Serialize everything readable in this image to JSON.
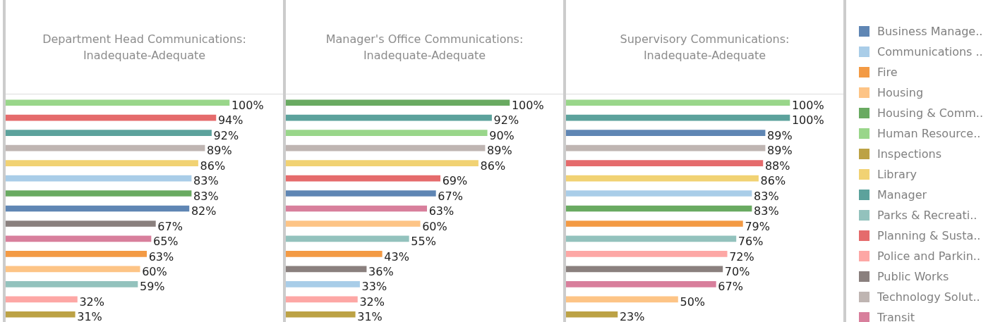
{
  "chart_data": [
    {
      "type": "bar",
      "orientation": "horizontal",
      "stacked": true,
      "title": "Department Head Communications:\nInadequate-Adequate",
      "categories": [
        null,
        null,
        null,
        null,
        null,
        null,
        null,
        null,
        null,
        null,
        null,
        null,
        null,
        null,
        null
      ],
      "series": [
        {
          "color": "#5f86b4",
          "values": [
            null,
            null,
            null,
            null,
            null,
            null,
            null,
            82,
            null,
            null,
            null,
            null,
            null,
            null,
            null
          ],
          "value_labels": [
            null,
            null,
            null,
            null,
            null,
            null,
            null,
            "82%",
            null,
            null,
            null,
            null,
            null,
            null,
            null
          ]
        },
        {
          "color": "#a9cde8",
          "values": [
            null,
            null,
            null,
            null,
            null,
            83,
            null,
            null,
            null,
            null,
            null,
            null,
            null,
            null,
            null
          ],
          "value_labels": [
            null,
            null,
            null,
            null,
            null,
            "83%",
            null,
            null,
            null,
            null,
            null,
            null,
            null,
            null,
            null
          ]
        },
        {
          "color": "#f39a44",
          "values": [
            null,
            null,
            null,
            null,
            null,
            null,
            null,
            null,
            null,
            null,
            63,
            null,
            null,
            null,
            null
          ],
          "value_labels": [
            null,
            null,
            null,
            null,
            null,
            null,
            null,
            null,
            null,
            null,
            "63%",
            null,
            null,
            null,
            null
          ]
        },
        {
          "color": "#fdc486",
          "values": [
            null,
            null,
            null,
            null,
            null,
            null,
            null,
            null,
            null,
            null,
            null,
            60,
            null,
            null,
            null
          ],
          "value_labels": [
            null,
            null,
            null,
            null,
            null,
            null,
            null,
            null,
            null,
            null,
            null,
            "60%",
            null,
            null,
            null
          ]
        },
        {
          "color": "#69aa61",
          "values": [
            null,
            null,
            null,
            null,
            null,
            null,
            83,
            null,
            null,
            null,
            null,
            null,
            null,
            null,
            null
          ],
          "value_labels": [
            null,
            null,
            null,
            null,
            null,
            null,
            "83%",
            null,
            null,
            null,
            null,
            null,
            null,
            null,
            null
          ]
        },
        {
          "color": "#99d68a",
          "values": [
            100,
            null,
            null,
            null,
            null,
            null,
            null,
            null,
            null,
            null,
            null,
            null,
            null,
            null,
            null
          ],
          "value_labels": [
            "100%",
            null,
            null,
            null,
            null,
            null,
            null,
            null,
            null,
            null,
            null,
            null,
            null,
            null,
            null
          ]
        },
        {
          "color": "#bca245",
          "values": [
            null,
            null,
            null,
            null,
            null,
            null,
            null,
            null,
            null,
            null,
            null,
            null,
            null,
            null,
            31
          ],
          "value_labels": [
            null,
            null,
            null,
            null,
            null,
            null,
            null,
            null,
            null,
            null,
            null,
            null,
            null,
            null,
            "31%"
          ]
        },
        {
          "color": "#f1d273",
          "values": [
            null,
            null,
            null,
            null,
            86,
            null,
            null,
            null,
            null,
            null,
            null,
            null,
            null,
            null,
            null
          ],
          "value_labels": [
            null,
            null,
            null,
            null,
            "86%",
            null,
            null,
            null,
            null,
            null,
            null,
            null,
            null,
            null,
            null
          ]
        },
        {
          "color": "#5ca29c",
          "values": [
            null,
            null,
            92,
            null,
            null,
            null,
            null,
            null,
            null,
            null,
            null,
            null,
            null,
            null,
            null
          ],
          "value_labels": [
            null,
            null,
            "92%",
            null,
            null,
            null,
            null,
            null,
            null,
            null,
            null,
            null,
            null,
            null,
            null
          ]
        },
        {
          "color": "#93c2bd",
          "values": [
            null,
            null,
            null,
            null,
            null,
            null,
            null,
            null,
            null,
            null,
            null,
            null,
            59,
            null,
            null
          ],
          "value_labels": [
            null,
            null,
            null,
            null,
            null,
            null,
            null,
            null,
            null,
            null,
            null,
            null,
            "59%",
            null,
            null
          ]
        },
        {
          "color": "#e56b6c",
          "values": [
            null,
            94,
            null,
            null,
            null,
            null,
            null,
            null,
            null,
            null,
            null,
            null,
            null,
            null,
            null
          ],
          "value_labels": [
            null,
            "94%",
            null,
            null,
            null,
            null,
            null,
            null,
            null,
            null,
            null,
            null,
            null,
            null,
            null
          ]
        },
        {
          "color": "#fda7a5",
          "values": [
            null,
            null,
            null,
            null,
            null,
            null,
            null,
            null,
            null,
            null,
            null,
            null,
            null,
            32,
            null
          ],
          "value_labels": [
            null,
            null,
            null,
            null,
            null,
            null,
            null,
            null,
            null,
            null,
            null,
            null,
            null,
            "32%",
            null
          ]
        },
        {
          "color": "#8a807e",
          "values": [
            null,
            null,
            null,
            null,
            null,
            null,
            null,
            null,
            67,
            null,
            null,
            null,
            null,
            null,
            null
          ],
          "value_labels": [
            null,
            null,
            null,
            null,
            null,
            null,
            null,
            null,
            "67%",
            null,
            null,
            null,
            null,
            null,
            null
          ]
        },
        {
          "color": "#bfb5b2",
          "values": [
            null,
            null,
            null,
            89,
            null,
            null,
            null,
            null,
            null,
            null,
            null,
            null,
            null,
            null,
            null
          ],
          "value_labels": [
            null,
            null,
            null,
            "89%",
            null,
            null,
            null,
            null,
            null,
            null,
            null,
            null,
            null,
            null,
            null
          ]
        },
        {
          "color": "#d87f9c",
          "values": [
            null,
            null,
            null,
            null,
            null,
            null,
            null,
            null,
            null,
            65,
            null,
            null,
            null,
            null,
            null
          ],
          "value_labels": [
            null,
            null,
            null,
            null,
            null,
            null,
            null,
            null,
            null,
            "65%",
            null,
            null,
            null,
            null,
            null
          ]
        }
      ]
    },
    {
      "type": "bar",
      "orientation": "horizontal",
      "stacked": true,
      "title": "Manager's Office Communications:\nInadequate-Adequate",
      "categories": [
        null,
        null,
        null,
        null,
        null,
        null,
        null,
        null,
        null,
        null,
        null,
        null,
        null,
        null,
        null
      ],
      "series": [
        {
          "color": "#5f86b4",
          "values": [
            null,
            null,
            null,
            null,
            null,
            null,
            67,
            null,
            null,
            null,
            null,
            null,
            null,
            null,
            null
          ],
          "value_labels": [
            null,
            null,
            null,
            null,
            null,
            null,
            "67%",
            null,
            null,
            null,
            null,
            null,
            null,
            null,
            null
          ]
        },
        {
          "color": "#a9cde8",
          "values": [
            null,
            null,
            null,
            null,
            null,
            null,
            null,
            null,
            null,
            null,
            null,
            null,
            33,
            null,
            null
          ],
          "value_labels": [
            null,
            null,
            null,
            null,
            null,
            null,
            null,
            null,
            null,
            null,
            null,
            null,
            "33%",
            null,
            null
          ]
        },
        {
          "color": "#f39a44",
          "values": [
            null,
            null,
            null,
            null,
            null,
            null,
            null,
            null,
            null,
            null,
            43,
            null,
            null,
            null,
            null
          ],
          "value_labels": [
            null,
            null,
            null,
            null,
            null,
            null,
            null,
            null,
            null,
            null,
            "43%",
            null,
            null,
            null,
            null
          ]
        },
        {
          "color": "#fdc486",
          "values": [
            null,
            null,
            null,
            null,
            null,
            null,
            null,
            null,
            60,
            null,
            null,
            null,
            null,
            null,
            null
          ],
          "value_labels": [
            null,
            null,
            null,
            null,
            null,
            null,
            null,
            null,
            "60%",
            null,
            null,
            null,
            null,
            null,
            null
          ]
        },
        {
          "color": "#69aa61",
          "values": [
            100,
            null,
            null,
            null,
            null,
            null,
            null,
            null,
            null,
            null,
            null,
            null,
            null,
            null,
            null
          ],
          "value_labels": [
            "100%",
            null,
            null,
            null,
            null,
            null,
            null,
            null,
            null,
            null,
            null,
            null,
            null,
            null,
            null
          ]
        },
        {
          "color": "#99d68a",
          "values": [
            null,
            null,
            90,
            null,
            null,
            null,
            null,
            null,
            null,
            null,
            null,
            null,
            null,
            null,
            null
          ],
          "value_labels": [
            null,
            null,
            "90%",
            null,
            null,
            null,
            null,
            null,
            null,
            null,
            null,
            null,
            null,
            null,
            null
          ]
        },
        {
          "color": "#bca245",
          "values": [
            null,
            null,
            null,
            null,
            null,
            null,
            null,
            null,
            null,
            null,
            null,
            null,
            null,
            null,
            31
          ],
          "value_labels": [
            null,
            null,
            null,
            null,
            null,
            null,
            null,
            null,
            null,
            null,
            null,
            null,
            null,
            null,
            "31%"
          ]
        },
        {
          "color": "#f1d273",
          "values": [
            null,
            null,
            null,
            null,
            86,
            null,
            null,
            null,
            null,
            null,
            null,
            null,
            null,
            null,
            null
          ],
          "value_labels": [
            null,
            null,
            null,
            null,
            "86%",
            null,
            null,
            null,
            null,
            null,
            null,
            null,
            null,
            null,
            null
          ]
        },
        {
          "color": "#5ca29c",
          "values": [
            null,
            92,
            null,
            null,
            null,
            null,
            null,
            null,
            null,
            null,
            null,
            null,
            null,
            null,
            null
          ],
          "value_labels": [
            null,
            "92%",
            null,
            null,
            null,
            null,
            null,
            null,
            null,
            null,
            null,
            null,
            null,
            null,
            null
          ]
        },
        {
          "color": "#93c2bd",
          "values": [
            null,
            null,
            null,
            null,
            null,
            null,
            null,
            null,
            null,
            55,
            null,
            null,
            null,
            null,
            null
          ],
          "value_labels": [
            null,
            null,
            null,
            null,
            null,
            null,
            null,
            null,
            null,
            "55%",
            null,
            null,
            null,
            null,
            null
          ]
        },
        {
          "color": "#e56b6c",
          "values": [
            null,
            null,
            null,
            null,
            null,
            69,
            null,
            null,
            null,
            null,
            null,
            null,
            null,
            null,
            null
          ],
          "value_labels": [
            null,
            null,
            null,
            null,
            null,
            "69%",
            null,
            null,
            null,
            null,
            null,
            null,
            null,
            null,
            null
          ]
        },
        {
          "color": "#fda7a5",
          "values": [
            null,
            null,
            null,
            null,
            null,
            null,
            null,
            null,
            null,
            null,
            null,
            null,
            null,
            32,
            null
          ],
          "value_labels": [
            null,
            null,
            null,
            null,
            null,
            null,
            null,
            null,
            null,
            null,
            null,
            null,
            null,
            "32%",
            null
          ]
        },
        {
          "color": "#8a807e",
          "values": [
            null,
            null,
            null,
            null,
            null,
            null,
            null,
            null,
            null,
            null,
            null,
            36,
            null,
            null,
            null
          ],
          "value_labels": [
            null,
            null,
            null,
            null,
            null,
            null,
            null,
            null,
            null,
            null,
            null,
            "36%",
            null,
            null,
            null
          ]
        },
        {
          "color": "#bfb5b2",
          "values": [
            null,
            null,
            null,
            89,
            null,
            null,
            null,
            null,
            null,
            null,
            null,
            null,
            null,
            null,
            null
          ],
          "value_labels": [
            null,
            null,
            null,
            "89%",
            null,
            null,
            null,
            null,
            null,
            null,
            null,
            null,
            null,
            null,
            null
          ]
        },
        {
          "color": "#d87f9c",
          "values": [
            null,
            null,
            null,
            null,
            null,
            null,
            null,
            63,
            null,
            null,
            null,
            null,
            null,
            null,
            null
          ],
          "value_labels": [
            null,
            null,
            null,
            null,
            null,
            null,
            null,
            "63%",
            null,
            null,
            null,
            null,
            null,
            null,
            null
          ]
        }
      ]
    },
    {
      "type": "bar",
      "orientation": "horizontal",
      "stacked": true,
      "legend": "right",
      "title": "Supervisory Communications:\nInadequate-Adequate",
      "categories": [
        null,
        null,
        null,
        null,
        null,
        null,
        null,
        null,
        null,
        null,
        null,
        null,
        null,
        null,
        null
      ],
      "series": [
        {
          "name": "Business Manage..",
          "color": "#5f86b4",
          "values": [
            null,
            null,
            89,
            null,
            null,
            null,
            null,
            null,
            null,
            null,
            null,
            null,
            null,
            null,
            null
          ],
          "value_labels": [
            null,
            null,
            "89%",
            null,
            null,
            null,
            null,
            null,
            null,
            null,
            null,
            null,
            null,
            null,
            null
          ]
        },
        {
          "name": "Communications ..",
          "color": "#a9cde8",
          "values": [
            null,
            null,
            null,
            null,
            null,
            null,
            83,
            null,
            null,
            null,
            null,
            null,
            null,
            null,
            null
          ],
          "value_labels": [
            null,
            null,
            null,
            null,
            null,
            null,
            "83%",
            null,
            null,
            null,
            null,
            null,
            null,
            null,
            null
          ]
        },
        {
          "name": "Fire",
          "color": "#f39a44",
          "values": [
            null,
            null,
            null,
            null,
            null,
            null,
            null,
            null,
            79,
            null,
            null,
            null,
            null,
            null,
            null
          ],
          "value_labels": [
            null,
            null,
            null,
            null,
            null,
            null,
            null,
            null,
            "79%",
            null,
            null,
            null,
            null,
            null,
            null
          ]
        },
        {
          "name": "Housing",
          "color": "#fdc486",
          "values": [
            null,
            null,
            null,
            null,
            null,
            null,
            null,
            null,
            null,
            null,
            null,
            null,
            null,
            50,
            null
          ],
          "value_labels": [
            null,
            null,
            null,
            null,
            null,
            null,
            null,
            null,
            null,
            null,
            null,
            null,
            null,
            "50%",
            null
          ]
        },
        {
          "name": "Housing & Comm..",
          "color": "#69aa61",
          "values": [
            null,
            null,
            null,
            null,
            null,
            null,
            null,
            83,
            null,
            null,
            null,
            null,
            null,
            null,
            null
          ],
          "value_labels": [
            null,
            null,
            null,
            null,
            null,
            null,
            null,
            "83%",
            null,
            null,
            null,
            null,
            null,
            null,
            null
          ]
        },
        {
          "name": "Human Resource..",
          "color": "#99d68a",
          "values": [
            100,
            null,
            null,
            null,
            null,
            null,
            null,
            null,
            null,
            null,
            null,
            null,
            null,
            null,
            null
          ],
          "value_labels": [
            "100%",
            null,
            null,
            null,
            null,
            null,
            null,
            null,
            null,
            null,
            null,
            null,
            null,
            null,
            null
          ]
        },
        {
          "name": "Inspections",
          "color": "#bca245",
          "values": [
            null,
            null,
            null,
            null,
            null,
            null,
            null,
            null,
            null,
            null,
            null,
            null,
            null,
            null,
            23
          ],
          "value_labels": [
            null,
            null,
            null,
            null,
            null,
            null,
            null,
            null,
            null,
            null,
            null,
            null,
            null,
            null,
            "23%"
          ]
        },
        {
          "name": "Library",
          "color": "#f1d273",
          "values": [
            null,
            null,
            null,
            null,
            null,
            86,
            null,
            null,
            null,
            null,
            null,
            null,
            null,
            null,
            null
          ],
          "value_labels": [
            null,
            null,
            null,
            null,
            null,
            "86%",
            null,
            null,
            null,
            null,
            null,
            null,
            null,
            null,
            null
          ]
        },
        {
          "name": "Manager",
          "color": "#5ca29c",
          "values": [
            null,
            100,
            null,
            null,
            null,
            null,
            null,
            null,
            null,
            null,
            null,
            null,
            null,
            null,
            null
          ],
          "value_labels": [
            null,
            "100%",
            null,
            null,
            null,
            null,
            null,
            null,
            null,
            null,
            null,
            null,
            null,
            null,
            null
          ]
        },
        {
          "name": "Parks & Recreati..",
          "color": "#93c2bd",
          "values": [
            null,
            null,
            null,
            null,
            null,
            null,
            null,
            null,
            null,
            76,
            null,
            null,
            null,
            null,
            null
          ],
          "value_labels": [
            null,
            null,
            null,
            null,
            null,
            null,
            null,
            null,
            null,
            "76%",
            null,
            null,
            null,
            null,
            null
          ]
        },
        {
          "name": "Planning & Susta..",
          "color": "#e56b6c",
          "values": [
            null,
            null,
            null,
            null,
            88,
            null,
            null,
            null,
            null,
            null,
            null,
            null,
            null,
            null,
            null
          ],
          "value_labels": [
            null,
            null,
            null,
            null,
            "88%",
            null,
            null,
            null,
            null,
            null,
            null,
            null,
            null,
            null,
            null
          ]
        },
        {
          "name": "Police and Parkin..",
          "color": "#fda7a5",
          "values": [
            null,
            null,
            null,
            null,
            null,
            null,
            null,
            null,
            null,
            null,
            72,
            null,
            null,
            null,
            null
          ],
          "value_labels": [
            null,
            null,
            null,
            null,
            null,
            null,
            null,
            null,
            null,
            null,
            "72%",
            null,
            null,
            null,
            null
          ]
        },
        {
          "name": "Public Works",
          "color": "#8a807e",
          "values": [
            null,
            null,
            null,
            null,
            null,
            null,
            null,
            null,
            null,
            null,
            null,
            70,
            null,
            null,
            null
          ],
          "value_labels": [
            null,
            null,
            null,
            null,
            null,
            null,
            null,
            null,
            null,
            null,
            null,
            "70%",
            null,
            null,
            null
          ]
        },
        {
          "name": "Technology Solut..",
          "color": "#bfb5b2",
          "values": [
            null,
            null,
            null,
            89,
            null,
            null,
            null,
            null,
            null,
            null,
            null,
            null,
            null,
            null,
            null
          ],
          "value_labels": [
            null,
            null,
            null,
            "89%",
            null,
            null,
            null,
            null,
            null,
            null,
            null,
            null,
            null,
            null,
            null
          ]
        },
        {
          "name": "Transit",
          "color": "#d87f9c",
          "values": [
            null,
            null,
            null,
            null,
            null,
            null,
            null,
            null,
            null,
            null,
            null,
            null,
            67,
            null,
            null
          ],
          "value_labels": [
            null,
            null,
            null,
            null,
            null,
            null,
            null,
            null,
            null,
            null,
            null,
            null,
            "67%",
            null,
            null
          ]
        }
      ]
    }
  ]
}
